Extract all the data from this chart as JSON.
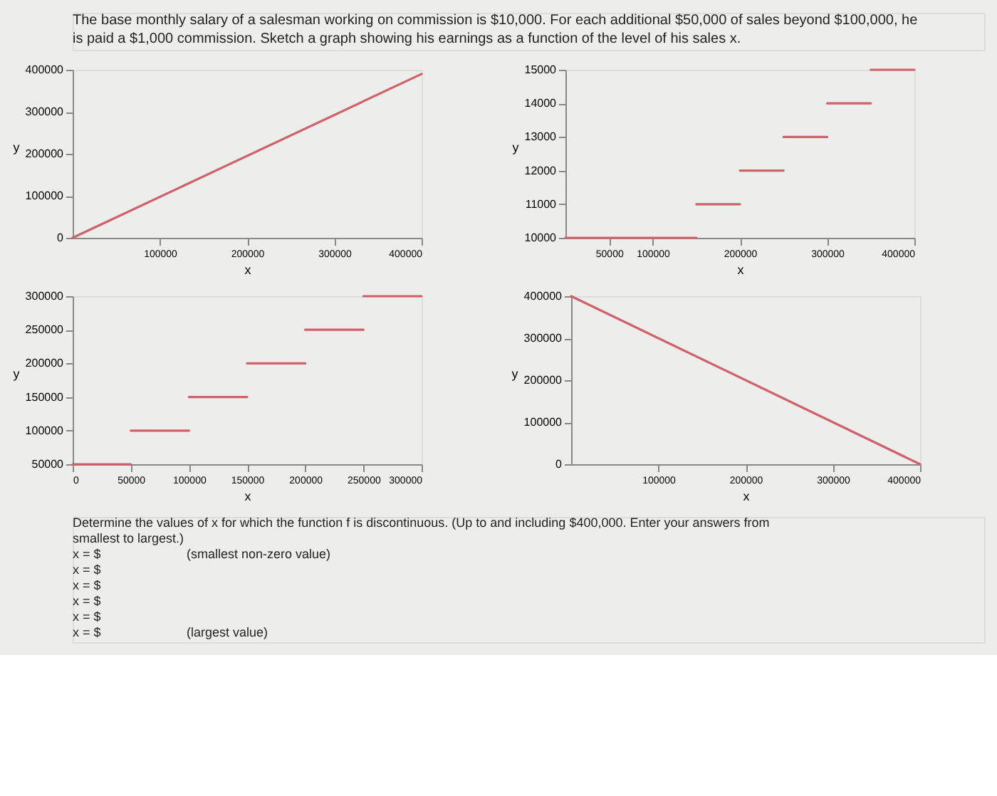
{
  "chart_data": [
    {
      "type": "line",
      "annotations": [
        "The base monthly salary of a salesman working on commission is $10,000. For each additional $50,000 of sales beyond $100,000, he is paid a $1,000 commission. Sketch a graph showing his earnings as a function of the level of his sales x."
      ],
      "xlabel": "x",
      "ylabel": "y",
      "xlim": [
        0,
        400000
      ],
      "ylim": [
        0,
        400000
      ],
      "xticks": [
        100000,
        200000,
        300000,
        400000
      ],
      "yticks": [
        0,
        100000,
        200000,
        300000,
        400000
      ],
      "grid": false,
      "line_style": "solid",
      "marker": "none",
      "series": [
        {
          "color": "#d0606a",
          "x": [
            0,
            400000
          ],
          "values": [
            0,
            390000
          ]
        }
      ]
    },
    {
      "type": "line",
      "xlabel": "x",
      "ylabel": "y",
      "xlim": [
        0,
        400000
      ],
      "ylim": [
        10000,
        15000
      ],
      "xticks": [
        50000,
        100000,
        200000,
        300000,
        400000
      ],
      "yticks": [
        10000,
        11000,
        12000,
        13000,
        14000,
        15000
      ],
      "grid": false,
      "line_style": "solid",
      "marker": "none",
      "series": [
        {
          "color": "#d0606a",
          "x": [
            0,
            150000
          ],
          "values": [
            10000,
            10000
          ]
        },
        {
          "color": "#d0606a",
          "x": [
            150000,
            200000
          ],
          "values": [
            11000,
            11000
          ]
        },
        {
          "color": "#d0606a",
          "x": [
            200000,
            250000
          ],
          "values": [
            12000,
            12000
          ]
        },
        {
          "color": "#d0606a",
          "x": [
            250000,
            300000
          ],
          "values": [
            13000,
            13000
          ]
        },
        {
          "color": "#d0606a",
          "x": [
            300000,
            350000
          ],
          "values": [
            14000,
            14000
          ]
        },
        {
          "color": "#d0606a",
          "x": [
            350000,
            400000
          ],
          "values": [
            15000,
            15000
          ]
        }
      ]
    },
    {
      "type": "line",
      "xlabel": "x",
      "ylabel": "y",
      "xlim": [
        0,
        300000
      ],
      "ylim": [
        50000,
        300000
      ],
      "xticks": [
        0,
        50000,
        100000,
        150000,
        200000,
        250000,
        300000
      ],
      "yticks": [
        50000,
        100000,
        150000,
        200000,
        250000,
        300000
      ],
      "grid": false,
      "line_style": "solid",
      "marker": "none",
      "series": [
        {
          "color": "#d0606a",
          "x": [
            0,
            50000
          ],
          "values": [
            50000,
            50000
          ]
        },
        {
          "color": "#d0606a",
          "x": [
            50000,
            100000
          ],
          "values": [
            100000,
            100000
          ]
        },
        {
          "color": "#d0606a",
          "x": [
            100000,
            150000
          ],
          "values": [
            150000,
            150000
          ]
        },
        {
          "color": "#d0606a",
          "x": [
            150000,
            200000
          ],
          "values": [
            200000,
            200000
          ]
        },
        {
          "color": "#d0606a",
          "x": [
            200000,
            250000
          ],
          "values": [
            250000,
            250000
          ]
        },
        {
          "color": "#d0606a",
          "x": [
            250000,
            300000
          ],
          "values": [
            300000,
            300000
          ]
        }
      ]
    },
    {
      "type": "line",
      "annotations": [
        "Determine the values of x for which the function f is discontinuous. (Up to and including $400,000. Enter your answers from smallest to largest.)",
        "x = $",
        "(smallest non-zero value)",
        "x = $",
        "x = $",
        "x = $",
        "x = $",
        "x = $",
        "(largest value)"
      ],
      "xlabel": "x",
      "ylabel": "y",
      "xlim": [
        0,
        400000
      ],
      "ylim": [
        0,
        400000
      ],
      "xticks": [
        100000,
        200000,
        300000,
        400000
      ],
      "yticks": [
        0,
        100000,
        200000,
        300000,
        400000
      ],
      "grid": false,
      "line_style": "solid",
      "marker": "none",
      "series": [
        {
          "color": "#d0606a",
          "x": [
            0,
            400000
          ],
          "values": [
            400000,
            0
          ]
        }
      ]
    }
  ]
}
